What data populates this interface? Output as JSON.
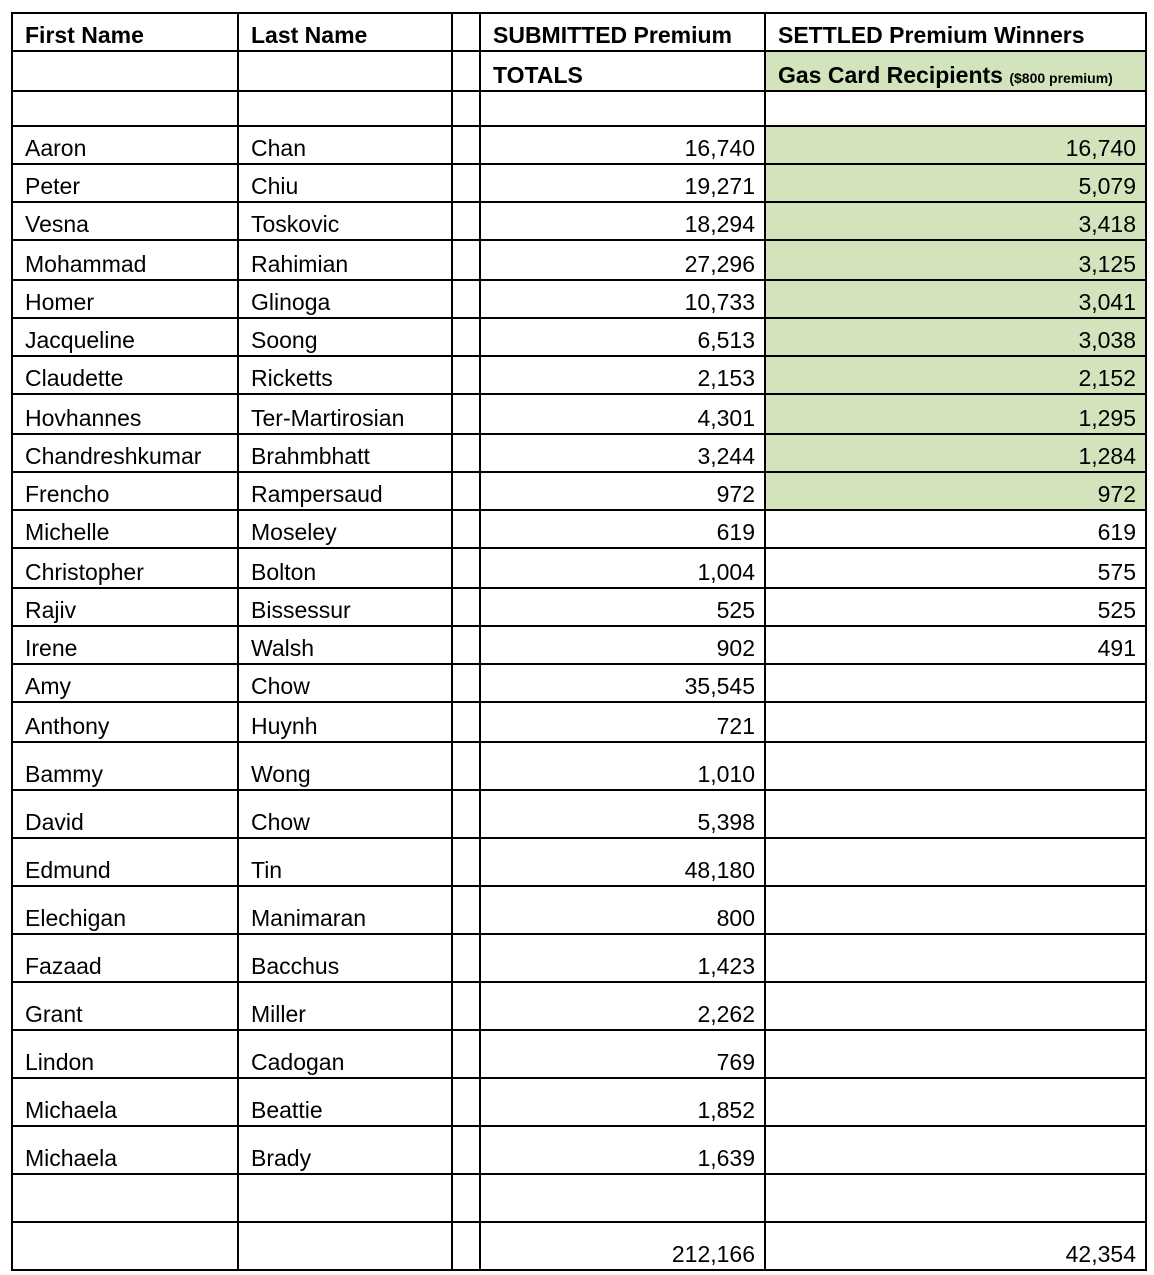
{
  "headers": {
    "first_name": "First Name",
    "last_name": "Last Name",
    "submitted_line1": "SUBMITTED Premium",
    "submitted_line2": "TOTALS",
    "settled_line1": "SETTLED Premium Winners",
    "settled_line2": "Gas Card Recipients",
    "settled_note": "($800 premium)"
  },
  "highlight_color": "#d3e4bd",
  "rows": [
    {
      "first": "Aaron",
      "last": "Chan",
      "submitted": "16,740",
      "settled": "16,740",
      "gas_card": true
    },
    {
      "first": "Peter",
      "last": "Chiu",
      "submitted": "19,271",
      "settled": "5,079",
      "gas_card": true
    },
    {
      "first": "Vesna",
      "last": "Toskovic",
      "submitted": "18,294",
      "settled": "3,418",
      "gas_card": true
    },
    {
      "first": "Mohammad",
      "last": "Rahimian",
      "submitted": "27,296",
      "settled": "3,125",
      "gas_card": true
    },
    {
      "first": "Homer",
      "last": "Glinoga",
      "submitted": "10,733",
      "settled": "3,041",
      "gas_card": true
    },
    {
      "first": "Jacqueline",
      "last": "Soong",
      "submitted": "6,513",
      "settled": "3,038",
      "gas_card": true
    },
    {
      "first": "Claudette",
      "last": "Ricketts",
      "submitted": "2,153",
      "settled": "2,152",
      "gas_card": true
    },
    {
      "first": "Hovhannes",
      "last": "Ter-Martirosian",
      "submitted": "4,301",
      "settled": "1,295",
      "gas_card": true
    },
    {
      "first": "Chandreshkumar",
      "last": "Brahmbhatt",
      "submitted": "3,244",
      "settled": "1,284",
      "gas_card": true
    },
    {
      "first": "Frencho",
      "last": "Rampersaud",
      "submitted": "972",
      "settled": "972",
      "gas_card": true
    },
    {
      "first": "Michelle",
      "last": "Moseley",
      "submitted": "619",
      "settled": "619",
      "gas_card": false
    },
    {
      "first": "Christopher",
      "last": "Bolton",
      "submitted": "1,004",
      "settled": "575",
      "gas_card": false
    },
    {
      "first": "Rajiv",
      "last": "Bissessur",
      "submitted": "525",
      "settled": "525",
      "gas_card": false
    },
    {
      "first": "Irene",
      "last": "Walsh",
      "submitted": "902",
      "settled": "491",
      "gas_card": false
    },
    {
      "first": "Amy",
      "last": "Chow",
      "submitted": "35,545",
      "settled": "",
      "gas_card": false
    },
    {
      "first": "Anthony",
      "last": "Huynh",
      "submitted": "721",
      "settled": "",
      "gas_card": false
    },
    {
      "first": "Bammy",
      "last": "Wong",
      "submitted": "1,010",
      "settled": "",
      "gas_card": false
    },
    {
      "first": "David",
      "last": "Chow",
      "submitted": "5,398",
      "settled": "",
      "gas_card": false
    },
    {
      "first": "Edmund",
      "last": "Tin",
      "submitted": "48,180",
      "settled": "",
      "gas_card": false
    },
    {
      "first": "Elechigan",
      "last": "Manimaran",
      "submitted": "800",
      "settled": "",
      "gas_card": false
    },
    {
      "first": "Fazaad",
      "last": "Bacchus",
      "submitted": "1,423",
      "settled": "",
      "gas_card": false
    },
    {
      "first": "Grant",
      "last": "Miller",
      "submitted": "2,262",
      "settled": "",
      "gas_card": false
    },
    {
      "first": "Lindon",
      "last": "Cadogan",
      "submitted": "769",
      "settled": "",
      "gas_card": false
    },
    {
      "first": "Michaela",
      "last": "Beattie",
      "submitted": "1,852",
      "settled": "",
      "gas_card": false
    },
    {
      "first": "Michaela",
      "last": "Brady",
      "submitted": "1,639",
      "settled": "",
      "gas_card": false
    }
  ],
  "totals": {
    "submitted": "212,166",
    "settled": "42,354"
  }
}
